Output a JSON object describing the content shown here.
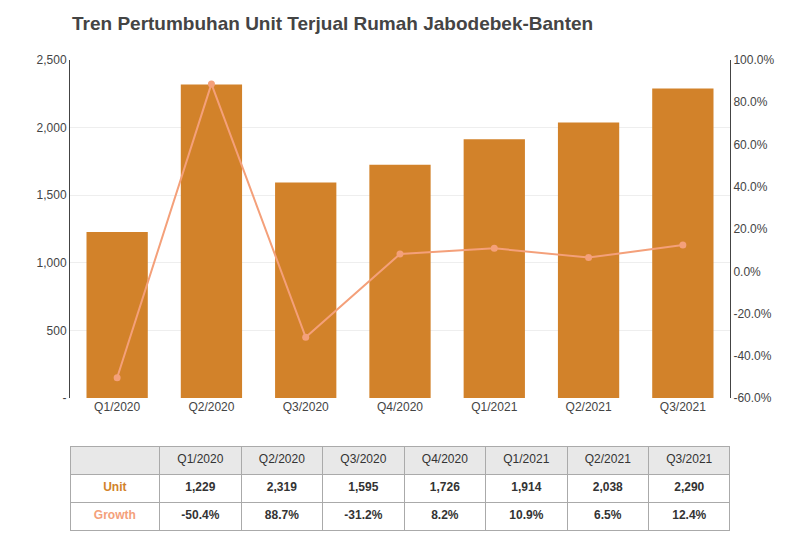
{
  "chart_data": {
    "type": "bar",
    "title": "Tren Pertumbuhan Unit Terjual Rumah Jabodebek-Banten",
    "categories": [
      "Q1/2020",
      "Q2/2020",
      "Q3/2020",
      "Q4/2020",
      "Q1/2021",
      "Q2/2021",
      "Q3/2021"
    ],
    "series": [
      {
        "name": "Unit",
        "type": "bar",
        "color": "#D2822A",
        "values": [
          1229,
          2319,
          1595,
          1726,
          1914,
          2038,
          2290
        ],
        "value_labels": [
          "1,229",
          "2,319",
          "1,595",
          "1,726",
          "1,914",
          "2,038",
          "2,290"
        ]
      },
      {
        "name": "Growth",
        "type": "line",
        "color": "#F4A07A",
        "axis": "y2",
        "marker": "circle",
        "values": [
          -50.4,
          88.7,
          -31.2,
          8.2,
          10.9,
          6.5,
          12.4
        ],
        "value_labels": [
          "-50.4%",
          "88.7%",
          "-31.2%",
          "8.2%",
          "10.9%",
          "6.5%",
          "12.4%"
        ]
      }
    ],
    "ylim": [
      0,
      2500
    ],
    "yticks": [
      {
        "value": 0,
        "label": "-"
      },
      500,
      {
        "value": 1000,
        "label": "1,000"
      },
      {
        "value": 1500,
        "label": "1,500"
      },
      {
        "value": 2000,
        "label": "2,000"
      },
      {
        "value": 2500,
        "label": "2,500"
      }
    ],
    "y2lim": [
      -60.0,
      100.0
    ],
    "y2ticks": [
      {
        "value": -60.0,
        "label": "-60.0%"
      },
      {
        "value": -40.0,
        "label": "-40.0%"
      },
      {
        "value": -20.0,
        "label": "-20.0%"
      },
      {
        "value": 0.0,
        "label": "0.0%"
      },
      {
        "value": 20.0,
        "label": "20.0%"
      },
      {
        "value": 40.0,
        "label": "40.0%"
      },
      {
        "value": 60.0,
        "label": "60.0%"
      },
      {
        "value": 80.0,
        "label": "80.0%"
      },
      {
        "value": 100.0,
        "label": "100.0%"
      }
    ],
    "grid": true
  }
}
